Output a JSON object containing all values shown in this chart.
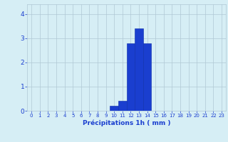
{
  "hours": [
    0,
    1,
    2,
    3,
    4,
    5,
    6,
    7,
    8,
    9,
    10,
    11,
    12,
    13,
    14,
    15,
    16,
    17,
    18,
    19,
    20,
    21,
    22,
    23
  ],
  "values": [
    0,
    0,
    0,
    0,
    0,
    0,
    0,
    0,
    0,
    0,
    0.2,
    0.4,
    2.8,
    3.4,
    2.8,
    0,
    0,
    0,
    0,
    0,
    0,
    0,
    0,
    0
  ],
  "bar_color": "#1a3ecf",
  "bar_edge_color": "#0a2aaa",
  "background_color": "#d6eef5",
  "grid_color": "#b0c8d4",
  "tick_color": "#1a3ecf",
  "xlabel": "Précipitations 1h ( mm )",
  "xlabel_color": "#1a3ecf",
  "ylim": [
    0,
    4.4
  ],
  "yticks": [
    0,
    1,
    2,
    3,
    4
  ],
  "xlim": [
    -0.5,
    23.5
  ]
}
